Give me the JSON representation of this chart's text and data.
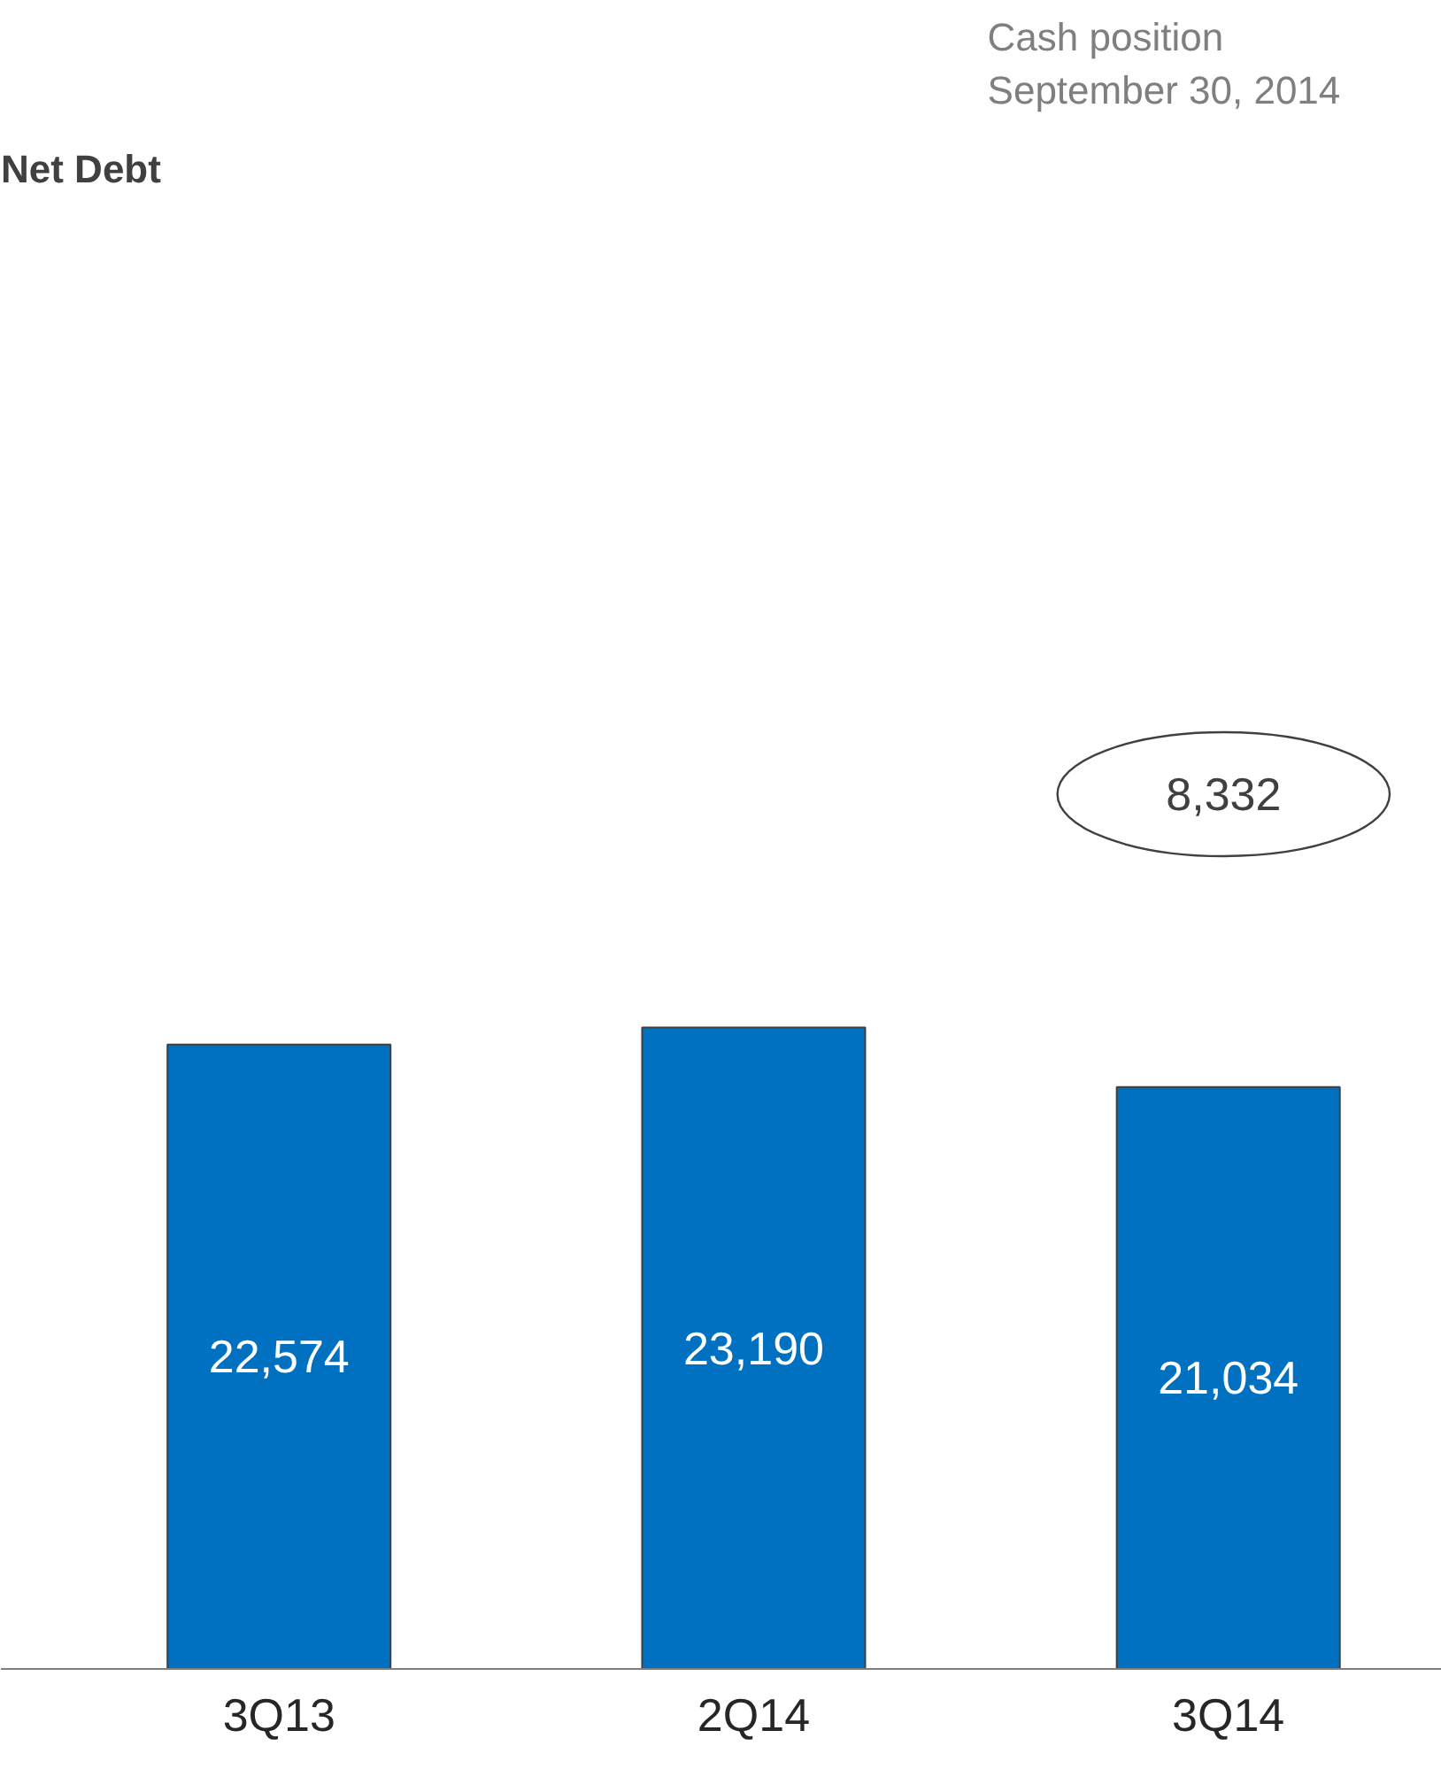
{
  "chart_data": {
    "type": "bar",
    "title": "Net Debt",
    "categories": [
      "3Q13",
      "2Q14",
      "3Q14"
    ],
    "values": [
      22574,
      23190,
      21034
    ],
    "value_labels": [
      "22,574",
      "23,190",
      "21,034"
    ],
    "color": "#0070c0",
    "tick_labels": "x",
    "annotations": [
      "Cash position\nSeptember 30, 2014",
      "8,332"
    ]
  }
}
